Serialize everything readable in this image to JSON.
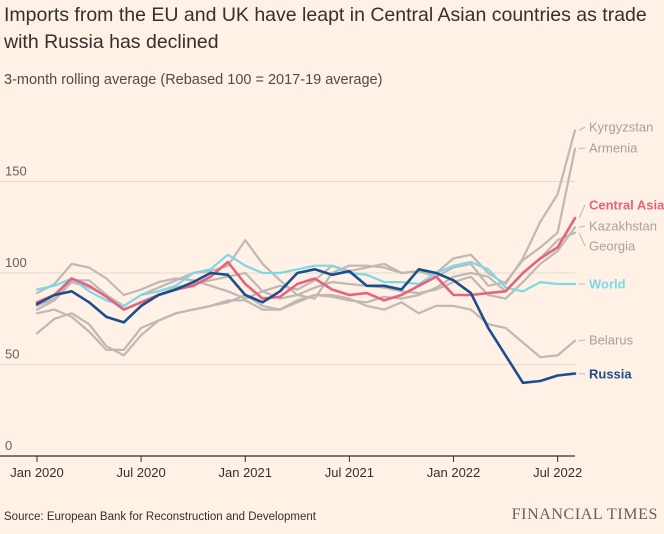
{
  "title": "Imports from the EU and UK have leapt in Central Asian countries as trade with Russia has declined",
  "subtitle": "3-month rolling average (Rebased 100 = 2017-19 average)",
  "source": "Source: European Bank for Reconstruction and Development",
  "brand": "FINANCIAL TIMES",
  "chart_data": {
    "type": "line",
    "title": "Imports from the EU and UK have leapt in Central Asian countries as trade with Russia has declined",
    "ylabel": "3-month rolling average (Rebased 100 = 2017-19 average)",
    "xlabel": "",
    "ylim": [
      0,
      180
    ],
    "yticks": [
      0,
      50,
      100,
      150
    ],
    "xticks": [
      {
        "label": "Jan 2020",
        "index": 0
      },
      {
        "label": "Jul 2020",
        "index": 6
      },
      {
        "label": "Jan 2021",
        "index": 12
      },
      {
        "label": "Jul 2021",
        "index": 18
      },
      {
        "label": "Jan 2022",
        "index": 24
      },
      {
        "label": "Jul 2022",
        "index": 30
      }
    ],
    "grid": true,
    "legend": "direct labels at right end of lines",
    "series": [
      {
        "name": "Kyrgyzstan",
        "color": "#bfb8b3",
        "emphasis": false,
        "values": [
          82,
          86,
          96,
          96,
          88,
          82,
          88,
          92,
          96,
          100,
          101,
          104,
          118,
          105,
          96,
          88,
          86,
          100,
          104,
          104,
          103,
          100,
          101,
          100,
          108,
          110,
          100,
          94,
          108,
          128,
          143,
          178
        ]
      },
      {
        "name": "Armenia",
        "color": "#bfb8b3",
        "emphasis": false,
        "values": [
          89,
          94,
          105,
          103,
          97,
          88,
          91,
          95,
          97,
          96,
          93,
          90,
          86,
          90,
          93,
          91,
          96,
          104,
          101,
          103,
          105,
          100,
          101,
          98,
          103,
          105,
          93,
          95,
          107,
          114,
          122,
          168
        ]
      },
      {
        "name": "Kazakhstan",
        "color": "#bfb8b3",
        "emphasis": false,
        "values": [
          80,
          85,
          95,
          92,
          88,
          80,
          84,
          88,
          92,
          94,
          96,
          98,
          100,
          90,
          86,
          88,
          92,
          95,
          94,
          93,
          92,
          90,
          89,
          91,
          95,
          98,
          88,
          86,
          95,
          105,
          112,
          125
        ]
      },
      {
        "name": "Georgia",
        "color": "#bfb8b3",
        "emphasis": false,
        "values": [
          78,
          80,
          76,
          68,
          58,
          58,
          70,
          74,
          78,
          80,
          82,
          84,
          88,
          82,
          80,
          84,
          88,
          87,
          85,
          84,
          87,
          86,
          88,
          92,
          98,
          100,
          98,
          90,
          100,
          108,
          118,
          122
        ]
      },
      {
        "name": "Belarus",
        "color": "#bfb8b3",
        "emphasis": false,
        "values": [
          67,
          75,
          78,
          72,
          60,
          55,
          66,
          74,
          78,
          80,
          82,
          85,
          85,
          80,
          80,
          85,
          88,
          88,
          86,
          82,
          80,
          84,
          78,
          82,
          82,
          80,
          72,
          70,
          62,
          54,
          55,
          63
        ]
      },
      {
        "name": "World",
        "color": "#7ed8e6",
        "emphasis": false,
        "values": [
          91,
          93,
          97,
          90,
          85,
          82,
          88,
          90,
          93,
          100,
          102,
          110,
          104,
          100,
          100,
          102,
          104,
          104,
          100,
          99,
          95,
          95,
          94,
          100,
          104,
          106,
          102,
          92,
          90,
          95,
          94,
          94
        ]
      },
      {
        "name": "Central Asia",
        "color": "#e4637d",
        "emphasis": true,
        "values": [
          84,
          88,
          97,
          93,
          87,
          80,
          84,
          88,
          91,
          93,
          98,
          106,
          94,
          86,
          87,
          94,
          97,
          91,
          88,
          89,
          85,
          88,
          93,
          98,
          88,
          88,
          89,
          90,
          100,
          108,
          114,
          130
        ]
      },
      {
        "name": "Russia",
        "color": "#1c4e8c",
        "emphasis": true,
        "values": [
          83,
          88,
          90,
          84,
          76,
          73,
          82,
          88,
          91,
          95,
          100,
          99,
          88,
          84,
          90,
          100,
          102,
          99,
          101,
          93,
          93,
          91,
          102,
          100,
          96,
          89,
          70,
          55,
          40,
          41,
          44,
          45
        ]
      }
    ]
  }
}
